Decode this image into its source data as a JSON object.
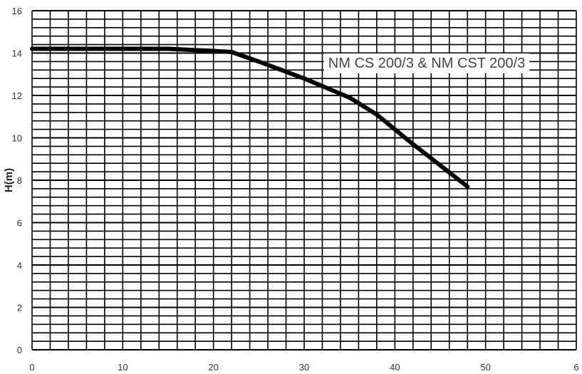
{
  "chart_data": {
    "type": "line",
    "title": "",
    "xlabel": "",
    "ylabel": "H(m)",
    "xlim": [
      0,
      60
    ],
    "ylim": [
      0,
      16
    ],
    "x_ticks": [
      "0",
      "10",
      "20",
      "30",
      "40",
      "50",
      "6"
    ],
    "y_ticks": [
      "0",
      "2",
      "4",
      "6",
      "8",
      "10",
      "12",
      "14",
      "16"
    ],
    "grid": true,
    "legend_position": "top-right",
    "series": [
      {
        "name": "NM CS 200/3 & NM CST 200/3",
        "color": "#000000",
        "x": [
          0,
          5,
          10,
          15,
          20,
          22,
          25,
          30,
          35,
          38,
          42,
          45,
          48
        ],
        "y": [
          14.2,
          14.2,
          14.2,
          14.2,
          14.1,
          14.05,
          13.6,
          12.8,
          11.9,
          11.1,
          9.7,
          8.7,
          7.7
        ]
      }
    ]
  }
}
